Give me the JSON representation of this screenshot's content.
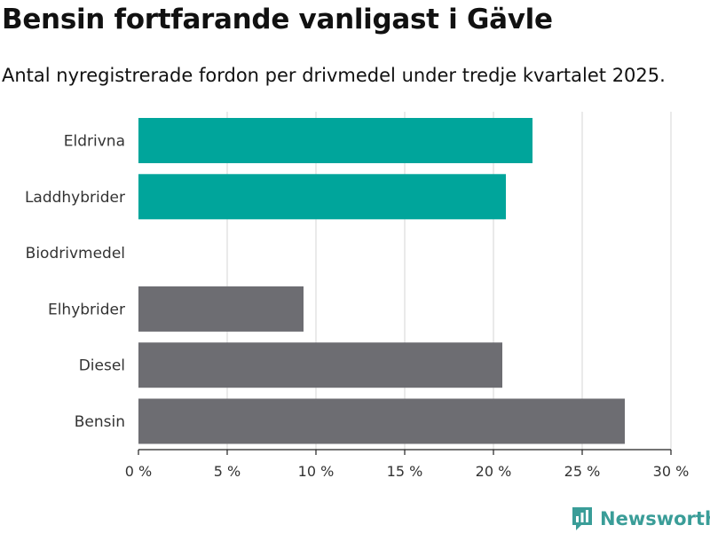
{
  "header": {
    "title": "Bensin fortfarande vanligast i Gävle",
    "subtitle": "Antal nyregistrerade fordon per drivmedel under tredje kvartalet 2025."
  },
  "brand": {
    "name": "Newsworthy",
    "icon": "newsworthy-logo-icon",
    "color": "#3a9d98"
  },
  "chart_data": {
    "type": "bar",
    "orientation": "horizontal",
    "categories": [
      "Eldrivna",
      "Laddhybrider",
      "Biodrivmedel",
      "Elhybrider",
      "Diesel",
      "Bensin"
    ],
    "values": [
      22.2,
      20.7,
      0,
      9.3,
      20.5,
      27.4
    ],
    "colors": [
      "#00a59b",
      "#00a59b",
      "#00a59b",
      "#6d6d72",
      "#6d6d72",
      "#6d6d72"
    ],
    "xlim": [
      0,
      30
    ],
    "xticks": [
      0,
      5,
      10,
      15,
      20,
      25,
      30
    ],
    "tick_suffix": " %",
    "grid": true,
    "legend": "none"
  }
}
